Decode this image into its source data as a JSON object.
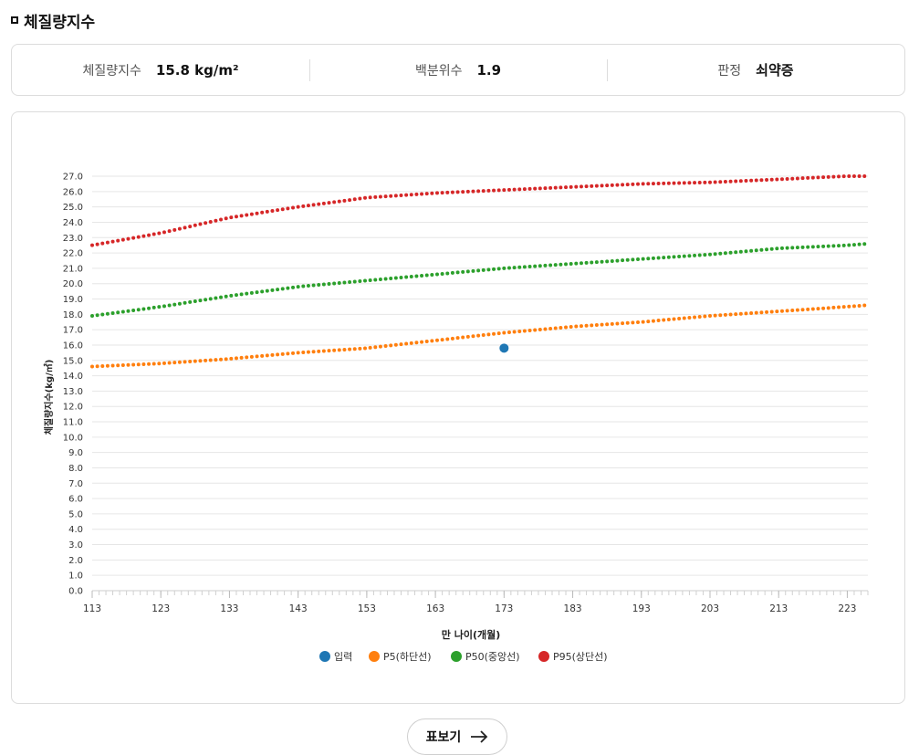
{
  "section": {
    "title": "체질량지수"
  },
  "summary": {
    "bmi_label": "체질량지수",
    "bmi_value": "15.8 kg/m²",
    "percentile_label": "백분위수",
    "percentile_value": "1.9",
    "judgment_label": "판정",
    "judgment_value": "쇠약증"
  },
  "table_button": {
    "label": "표보기",
    "icon": "arrow-right-icon"
  },
  "chart_data": {
    "type": "scatter",
    "xlabel": "만 나이(개월)",
    "ylabel": "체질량지수(kg/㎡)",
    "xlim": [
      113,
      226
    ],
    "ylim": [
      0,
      27
    ],
    "x_ticks": [
      113,
      123,
      133,
      143,
      153,
      163,
      173,
      183,
      193,
      203,
      213,
      223
    ],
    "y_tick_step": 1,
    "grid": "horizontal",
    "legend_position": "bottom",
    "series": [
      {
        "name": "입력",
        "color": "#1f77b4",
        "points": [
          [
            173,
            15.8
          ]
        ]
      },
      {
        "name": "P5(하단선)",
        "color": "#ff7f0e",
        "x_start": 113,
        "x_end": 226,
        "values_at": [
          [
            113,
            14.6
          ],
          [
            123,
            14.8
          ],
          [
            133,
            15.1
          ],
          [
            143,
            15.5
          ],
          [
            153,
            15.8
          ],
          [
            163,
            16.3
          ],
          [
            173,
            16.8
          ],
          [
            183,
            17.2
          ],
          [
            193,
            17.5
          ],
          [
            203,
            17.9
          ],
          [
            213,
            18.2
          ],
          [
            223,
            18.5
          ],
          [
            226,
            18.6
          ]
        ]
      },
      {
        "name": "P50(중앙선)",
        "color": "#2ca02c",
        "x_start": 113,
        "x_end": 226,
        "values_at": [
          [
            113,
            17.9
          ],
          [
            123,
            18.5
          ],
          [
            133,
            19.2
          ],
          [
            143,
            19.8
          ],
          [
            153,
            20.2
          ],
          [
            163,
            20.6
          ],
          [
            173,
            21.0
          ],
          [
            183,
            21.3
          ],
          [
            193,
            21.6
          ],
          [
            203,
            21.9
          ],
          [
            213,
            22.3
          ],
          [
            223,
            22.5
          ],
          [
            226,
            22.6
          ]
        ]
      },
      {
        "name": "P95(상단선)",
        "color": "#d62728",
        "x_start": 113,
        "x_end": 226,
        "values_at": [
          [
            113,
            22.5
          ],
          [
            123,
            23.3
          ],
          [
            133,
            24.3
          ],
          [
            143,
            25.0
          ],
          [
            153,
            25.6
          ],
          [
            163,
            25.9
          ],
          [
            173,
            26.1
          ],
          [
            183,
            26.3
          ],
          [
            193,
            26.5
          ],
          [
            203,
            26.6
          ],
          [
            213,
            26.8
          ],
          [
            223,
            27.0
          ],
          [
            226,
            27.0
          ]
        ]
      }
    ]
  }
}
